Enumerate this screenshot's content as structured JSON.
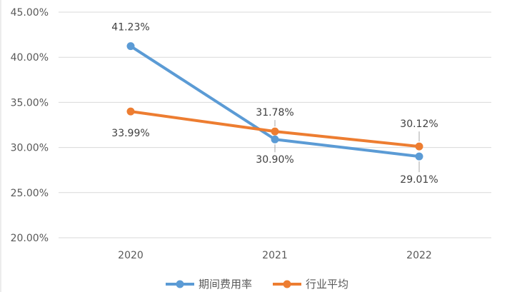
{
  "chart_data": {
    "type": "line",
    "categories": [
      "2020",
      "2021",
      "2022"
    ],
    "ylim": [
      20,
      45
    ],
    "yticks": [
      20,
      25,
      30,
      35,
      40,
      45
    ],
    "ytick_labels": [
      "20.00%",
      "25.00%",
      "30.00%",
      "35.00%",
      "40.00%",
      "45.00%"
    ],
    "grid": true,
    "legend_position": "bottom",
    "series": [
      {
        "name": "期间费用率",
        "color": "#5B9BD5",
        "values": [
          41.23,
          30.9,
          29.01
        ],
        "labels": [
          "41.23%",
          "30.90%",
          "29.01%"
        ]
      },
      {
        "name": "行业平均",
        "color": "#ED7D31",
        "values": [
          33.99,
          31.78,
          30.12
        ],
        "labels": [
          "33.99%",
          "31.78%",
          "30.12%"
        ]
      }
    ]
  }
}
